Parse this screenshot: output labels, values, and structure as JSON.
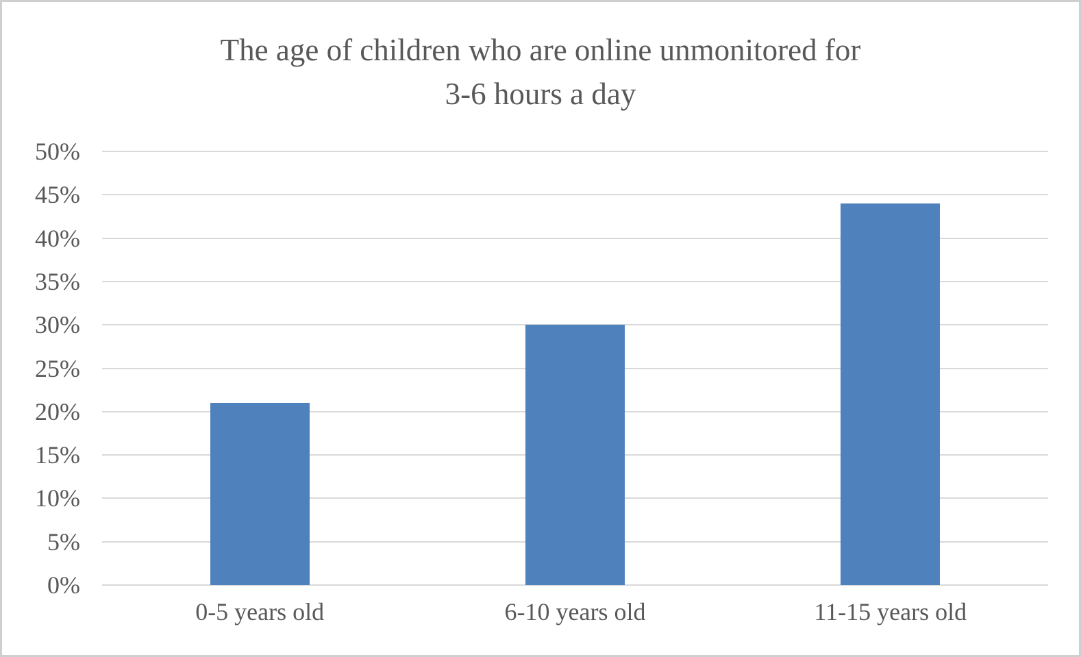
{
  "frame": {
    "background": "#ffffff",
    "border_color": "#cfcfcf"
  },
  "chart_data": {
    "type": "bar",
    "title": "The age of children who are online unmonitored for 3-6 hours a day",
    "title_lines": [
      "The age of children who are online unmonitored for",
      "3-6 hours a day"
    ],
    "categories": [
      "0-5 years old",
      "6-10 years old",
      "11-15 years old"
    ],
    "values": [
      21,
      30,
      44
    ],
    "value_unit": "%",
    "xlabel": "",
    "ylabel": "",
    "ylim": [
      0,
      50
    ],
    "y_ticks": [
      50,
      45,
      40,
      35,
      30,
      25,
      20,
      15,
      10,
      5,
      0
    ],
    "y_tick_suffix": "%",
    "grid": true,
    "legend_position": "none",
    "colors": {
      "bar": "#4f81bd",
      "gridline": "#d9d9d9",
      "text": "#595959"
    }
  }
}
